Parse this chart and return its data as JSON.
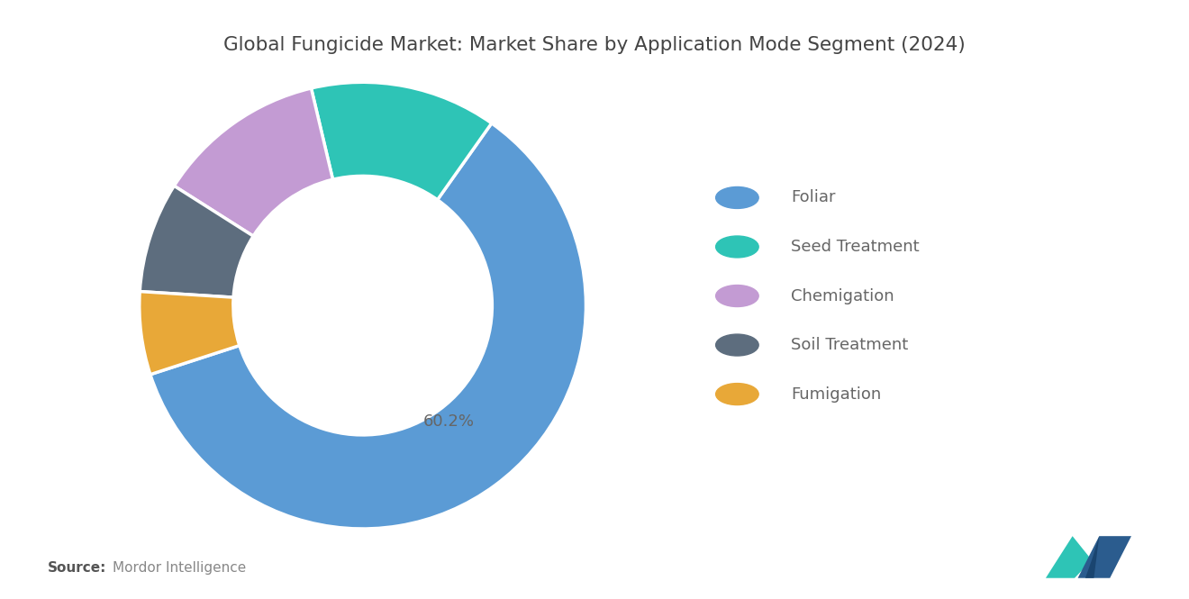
{
  "title": "Global Fungicide Market: Market Share by Application Mode Segment (2024)",
  "segments": [
    "Foliar",
    "Seed Treatment",
    "Chemigation",
    "Soil Treatment",
    "Fumigation"
  ],
  "values": [
    60.2,
    13.5,
    12.3,
    8.0,
    6.0
  ],
  "colors": [
    "#5B9BD5",
    "#2EC4B6",
    "#C39BD3",
    "#5D6D7E",
    "#E8A838"
  ],
  "label_text": "60.2%",
  "source_bold": "Source:",
  "source_normal": "Mordor Intelligence",
  "background_color": "#FFFFFF",
  "title_fontsize": 15.5,
  "legend_fontsize": 13,
  "source_fontsize": 11,
  "donut_width": 0.42,
  "start_angle": 198,
  "counterclock": true
}
